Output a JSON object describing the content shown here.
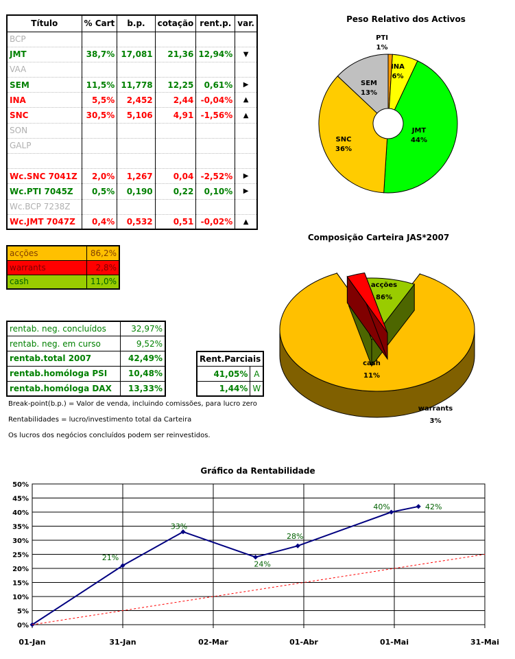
{
  "holdings": {
    "headers": [
      "Título",
      "% Cart",
      "b.p.",
      "cotação",
      "rent.p.",
      "var."
    ],
    "rows": [
      {
        "name": "BCP",
        "pct": "",
        "bp": "",
        "cot": "",
        "rent": "",
        "var": "",
        "style": "muted"
      },
      {
        "name": "JMT",
        "pct": "38,7%",
        "bp": "17,081",
        "cot": "21,36",
        "rent": "12,94%",
        "var": "▼",
        "style": "green"
      },
      {
        "name": "VAA",
        "pct": "",
        "bp": "",
        "cot": "",
        "rent": "",
        "var": "",
        "style": "muted"
      },
      {
        "name": "SEM",
        "pct": "11,5%",
        "bp": "11,778",
        "cot": "12,25",
        "rent": "0,61%",
        "var": "▶",
        "style": "green"
      },
      {
        "name": "INA",
        "pct": "5,5%",
        "bp": "2,452",
        "cot": "2,44",
        "rent": "-0,04%",
        "var": "▲",
        "style": "red"
      },
      {
        "name": "SNC",
        "pct": "30,5%",
        "bp": "5,106",
        "cot": "4,91",
        "rent": "-1,56%",
        "var": "▲",
        "style": "red"
      },
      {
        "name": "SON",
        "pct": "",
        "bp": "",
        "cot": "",
        "rent": "",
        "var": "",
        "style": "muted"
      },
      {
        "name": "GALP",
        "pct": "",
        "bp": "",
        "cot": "",
        "rent": "",
        "var": "",
        "style": "muted"
      },
      {
        "name": "",
        "pct": "",
        "bp": "",
        "cot": "",
        "rent": "",
        "var": "",
        "style": "muted"
      },
      {
        "name": "Wc.SNC 7041Z",
        "pct": "2,0%",
        "bp": "1,267",
        "cot": "0,04",
        "rent": "-2,52%",
        "var": "▶",
        "style": "red"
      },
      {
        "name": "Wc.PTI 7045Z",
        "pct": "0,5%",
        "bp": "0,190",
        "cot": "0,22",
        "rent": "0,10%",
        "var": "▶",
        "style": "green"
      },
      {
        "name": "Wc.BCP 7238Z",
        "pct": "",
        "bp": "",
        "cot": "",
        "rent": "",
        "var": "",
        "style": "muted"
      },
      {
        "name": "Wc.JMT 7047Z",
        "pct": "0,4%",
        "bp": "0,532",
        "cot": "0,51",
        "rent": "-0,02%",
        "var": "▲",
        "style": "red"
      }
    ]
  },
  "allocation": [
    {
      "label": "acções",
      "value": "86,2%",
      "bg": "#ffc000",
      "fg": "#804000"
    },
    {
      "label": "warrants",
      "value": "2,8%",
      "bg": "#ff0000",
      "fg": "#800000"
    },
    {
      "label": "cash",
      "value": "11,0%",
      "bg": "#99cc00",
      "fg": "#006000"
    }
  ],
  "returns": [
    {
      "label": "rentab. neg. concluídos",
      "value": "32,97%",
      "bold": false
    },
    {
      "label": "rentab. neg. em curso",
      "value": "9,52%",
      "bold": false
    },
    {
      "label": "rentab.total 2007",
      "value": "42,49%",
      "bold": true
    },
    {
      "label": "rentab.homóloga PSI",
      "value": "10,48%",
      "bold": true
    },
    {
      "label": "rentab.homóloga DAX",
      "value": "13,33%",
      "bold": true
    }
  ],
  "partials": {
    "header": "Rent.Parciais",
    "rows": [
      {
        "value": "41,05%",
        "letter": "A"
      },
      {
        "value": "1,44%",
        "letter": "W"
      }
    ]
  },
  "notes": [
    "Break-point(b.p.) = Valor de venda, incluindo comissões, para lucro zero",
    "Rentabilidades = lucro/investimento total da Carteira",
    "Os lucros dos negócios concluídos podem ser reinvestidos."
  ],
  "colors": {
    "green": "#008000",
    "red": "#ff0000",
    "muted": "#b0b0b0"
  },
  "chart_data": [
    {
      "type": "pie",
      "variant": "doughnut",
      "title": "Peso Relativo dos Activos",
      "slices": [
        {
          "label": "PTI",
          "value": 1,
          "text": "1%",
          "color": "#ff9900"
        },
        {
          "label": "INA",
          "value": 6,
          "text": "6%",
          "color": "#ffff00"
        },
        {
          "label": "JMT",
          "value": 44,
          "text": "44%",
          "color": "#00ff00"
        },
        {
          "label": "SNC",
          "value": 36,
          "text": "36%",
          "color": "#ffcc00"
        },
        {
          "label": "SEM",
          "value": 13,
          "text": "13%",
          "color": "#c0c0c0"
        }
      ]
    },
    {
      "type": "pie",
      "variant": "3d-exploded",
      "title": "Composição Carteira JAS*2007",
      "slices": [
        {
          "label": "acções",
          "value": 86,
          "text": "86%",
          "color": "#ffc000",
          "side": "#806000"
        },
        {
          "label": "warrants",
          "value": 3,
          "text": "3%",
          "color": "#ff0000",
          "side": "#800000"
        },
        {
          "label": "cash",
          "value": 11,
          "text": "11%",
          "color": "#99cc00",
          "side": "#4d6600"
        }
      ]
    },
    {
      "type": "line",
      "title": "Gráfico da Rentabilidade",
      "x_ticks": [
        "01-Jan",
        "31-Jan",
        "02-Mar",
        "01-Abr",
        "01-Mai",
        "31-Mai"
      ],
      "x_tick_days": [
        0,
        30,
        60,
        90,
        120,
        150
      ],
      "ylim": [
        0,
        50
      ],
      "y_ticks": [
        "0%",
        "5%",
        "10%",
        "15%",
        "20%",
        "25%",
        "30%",
        "35%",
        "40%",
        "45%",
        "50%"
      ],
      "grid": true,
      "series": [
        {
          "style": "solid",
          "color": "#000080",
          "x": [
            0,
            30,
            50,
            74,
            88,
            119,
            128
          ],
          "y": [
            0,
            21,
            33,
            24,
            28,
            40,
            42
          ],
          "labels": [
            "",
            "21%",
            "33%",
            "24%",
            "28%",
            "40%",
            "42%"
          ]
        },
        {
          "style": "dashed",
          "color": "#ff0000",
          "x": [
            0,
            150
          ],
          "y": [
            0,
            25
          ],
          "labels": []
        }
      ]
    }
  ]
}
